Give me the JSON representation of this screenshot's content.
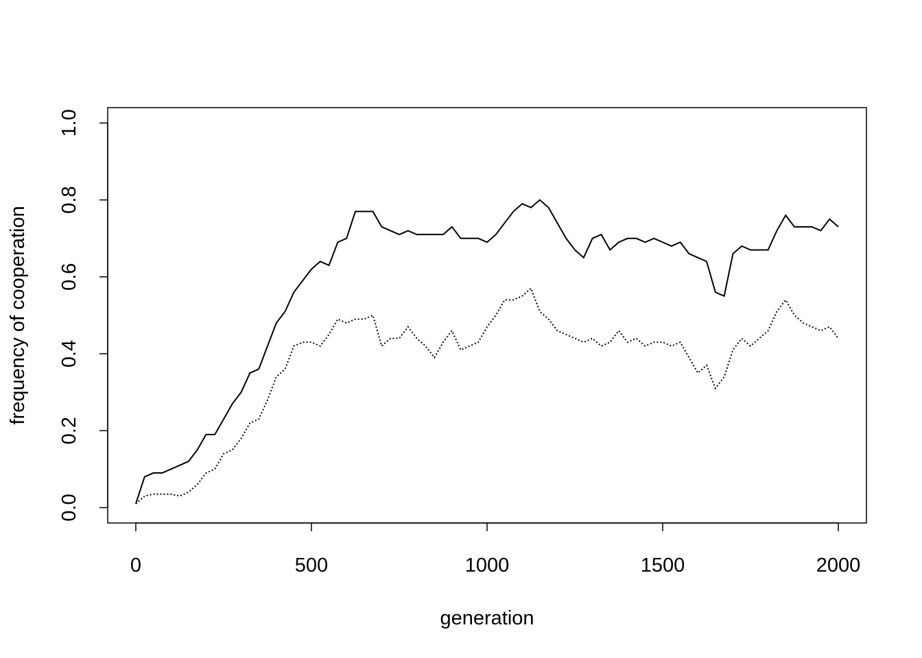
{
  "chart_data": {
    "type": "line",
    "xlabel": "generation",
    "ylabel": "frequency of cooperation",
    "x": [
      0,
      25,
      50,
      75,
      100,
      125,
      150,
      175,
      200,
      225,
      250,
      275,
      300,
      325,
      350,
      375,
      400,
      425,
      450,
      475,
      500,
      525,
      550,
      575,
      600,
      625,
      650,
      675,
      700,
      725,
      750,
      775,
      800,
      825,
      850,
      875,
      900,
      925,
      950,
      975,
      1000,
      1025,
      1050,
      1075,
      1100,
      1125,
      1150,
      1175,
      1200,
      1225,
      1250,
      1275,
      1300,
      1325,
      1350,
      1375,
      1400,
      1425,
      1450,
      1475,
      1500,
      1525,
      1550,
      1575,
      1600,
      1625,
      1650,
      1675,
      1700,
      1725,
      1750,
      1775,
      1800,
      1825,
      1850,
      1875,
      1900,
      1925,
      1950,
      1975,
      2000
    ],
    "series": [
      {
        "color": "#000000",
        "dash": "solid",
        "values": [
          0.01,
          0.08,
          0.09,
          0.09,
          0.1,
          0.11,
          0.12,
          0.15,
          0.19,
          0.19,
          0.23,
          0.27,
          0.3,
          0.35,
          0.36,
          0.42,
          0.48,
          0.51,
          0.56,
          0.59,
          0.62,
          0.64,
          0.63,
          0.69,
          0.7,
          0.77,
          0.77,
          0.77,
          0.73,
          0.72,
          0.71,
          0.72,
          0.71,
          0.71,
          0.71,
          0.71,
          0.73,
          0.7,
          0.7,
          0.7,
          0.69,
          0.71,
          0.74,
          0.77,
          0.79,
          0.78,
          0.8,
          0.78,
          0.74,
          0.7,
          0.67,
          0.65,
          0.7,
          0.71,
          0.67,
          0.69,
          0.7,
          0.7,
          0.69,
          0.7,
          0.69,
          0.68,
          0.69,
          0.66,
          0.65,
          0.64,
          0.56,
          0.55,
          0.66,
          0.68,
          0.67,
          0.67,
          0.67,
          0.72,
          0.76,
          0.73,
          0.73,
          0.73,
          0.72,
          0.75,
          0.73
        ]
      },
      {
        "color": "#000000",
        "dash": "dotted",
        "values": [
          0.01,
          0.03,
          0.035,
          0.035,
          0.035,
          0.03,
          0.04,
          0.06,
          0.09,
          0.1,
          0.14,
          0.15,
          0.18,
          0.22,
          0.23,
          0.28,
          0.34,
          0.36,
          0.42,
          0.43,
          0.43,
          0.42,
          0.45,
          0.49,
          0.48,
          0.49,
          0.49,
          0.5,
          0.42,
          0.44,
          0.44,
          0.47,
          0.44,
          0.42,
          0.39,
          0.43,
          0.46,
          0.41,
          0.42,
          0.43,
          0.47,
          0.5,
          0.54,
          0.54,
          0.55,
          0.57,
          0.51,
          0.49,
          0.46,
          0.45,
          0.44,
          0.43,
          0.44,
          0.42,
          0.43,
          0.46,
          0.43,
          0.44,
          0.42,
          0.43,
          0.43,
          0.42,
          0.43,
          0.39,
          0.35,
          0.37,
          0.31,
          0.34,
          0.41,
          0.44,
          0.42,
          0.44,
          0.46,
          0.51,
          0.54,
          0.5,
          0.48,
          0.47,
          0.46,
          0.47,
          0.44
        ]
      }
    ],
    "xlim": [
      -80,
      2080
    ],
    "ylim": [
      -0.04,
      1.04
    ],
    "xticks": [
      0,
      500,
      1000,
      1500,
      2000
    ],
    "yticks": [
      {
        "value": 0,
        "label": "0.0"
      },
      0.2,
      0.4,
      0.6,
      0.8,
      {
        "value": 1,
        "label": "1.0"
      }
    ]
  }
}
